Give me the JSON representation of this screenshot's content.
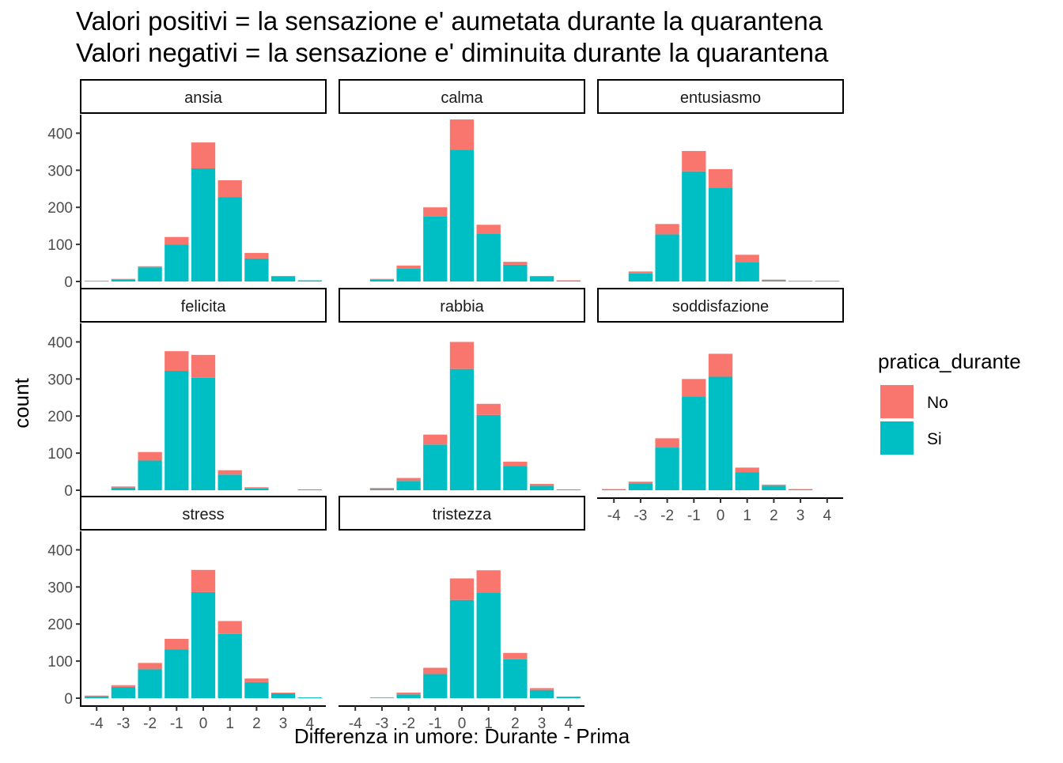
{
  "chart_data": {
    "type": "bar",
    "stacked": true,
    "title_lines": [
      "Valori positivi = la sensazione e' aumetata durante la quarantena",
      "Valori negativi = la sensazione e' diminuita durante la quarantena"
    ],
    "xlabel": "Differenza in umore: Durante - Prima",
    "ylabel": "count",
    "x": [
      -4,
      -3,
      -2,
      -1,
      0,
      1,
      2,
      3,
      4
    ],
    "x_tick_labels": [
      "-4",
      "-3",
      "-2",
      "-1",
      "0",
      "1",
      "2",
      "3",
      "4"
    ],
    "ylim": [
      0,
      450
    ],
    "y_ticks": [
      0,
      100,
      200,
      300,
      400
    ],
    "legend": {
      "title": "pratica_durante",
      "placement": "right",
      "entries": [
        {
          "label": "No",
          "color": "#F8766D"
        },
        {
          "label": "Si",
          "color": "#00BFC4"
        }
      ]
    },
    "colors": {
      "No": "#F8766D",
      "Si": "#00BFC4"
    },
    "panels": [
      {
        "name": "ansia",
        "Si": [
          0,
          5,
          38,
          100,
          305,
          228,
          62,
          13,
          3
        ],
        "No": [
          2,
          2,
          3,
          20,
          70,
          45,
          15,
          2,
          0
        ]
      },
      {
        "name": "calma",
        "Si": [
          0,
          5,
          35,
          175,
          355,
          128,
          45,
          13,
          2
        ],
        "No": [
          0,
          2,
          8,
          25,
          82,
          25,
          8,
          2,
          1
        ]
      },
      {
        "name": "entusiasmo",
        "Si": [
          0,
          22,
          127,
          297,
          253,
          52,
          3,
          1,
          1
        ],
        "No": [
          0,
          5,
          28,
          55,
          50,
          20,
          2,
          1,
          1
        ]
      },
      {
        "name": "felicita",
        "Si": [
          0,
          7,
          80,
          322,
          303,
          42,
          5,
          0,
          2
        ],
        "No": [
          0,
          3,
          23,
          53,
          62,
          12,
          3,
          0,
          0
        ]
      },
      {
        "name": "rabbia",
        "Si": [
          0,
          3,
          25,
          123,
          327,
          203,
          65,
          12,
          2
        ],
        "No": [
          0,
          3,
          8,
          27,
          73,
          30,
          12,
          5,
          0
        ]
      },
      {
        "name": "soddisfazione",
        "Si": [
          2,
          18,
          115,
          253,
          306,
          48,
          12,
          2,
          0
        ],
        "No": [
          1,
          5,
          25,
          47,
          62,
          13,
          3,
          1,
          0
        ]
      },
      {
        "name": "stress",
        "Si": [
          5,
          30,
          78,
          132,
          286,
          173,
          43,
          13,
          2
        ],
        "No": [
          2,
          5,
          17,
          28,
          60,
          35,
          10,
          2,
          0
        ]
      },
      {
        "name": "tristezza",
        "Si": [
          0,
          1,
          10,
          65,
          265,
          285,
          105,
          22,
          4
        ],
        "No": [
          0,
          1,
          5,
          17,
          58,
          60,
          17,
          5,
          0
        ]
      }
    ]
  }
}
